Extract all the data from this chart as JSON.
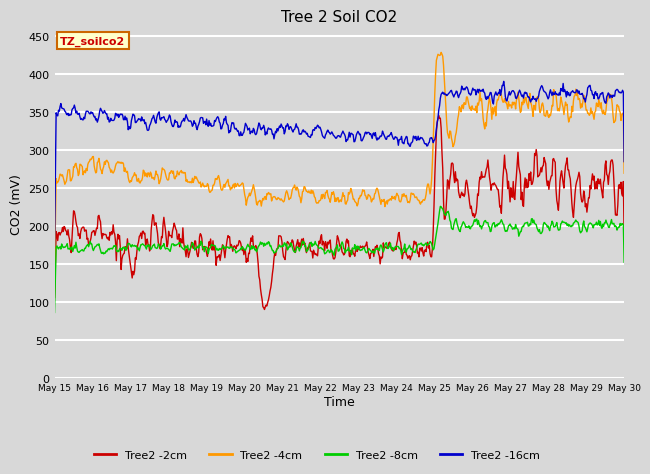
{
  "title": "Tree 2 Soil CO2",
  "xlabel": "Time",
  "ylabel": "CO2 (mV)",
  "ylim": [
    0,
    460
  ],
  "yticks": [
    0,
    50,
    100,
    150,
    200,
    250,
    300,
    350,
    400,
    450
  ],
  "annotation_text": "TZ_soilco2",
  "annotation_bg": "#ffffcc",
  "annotation_edge": "#cc6600",
  "background_color": "#d8d8d8",
  "plot_bg": "#d8d8d8",
  "grid_color": "#ffffff",
  "colors": {
    "2cm": "#cc0000",
    "4cm": "#ff9900",
    "8cm": "#00cc00",
    "16cm": "#0000cc"
  },
  "legend_labels": [
    "Tree2 -2cm",
    "Tree2 -4cm",
    "Tree2 -8cm",
    "Tree2 -16cm"
  ],
  "tick_labels": [
    "May 15",
    "May 16",
    "May 17",
    "May 18",
    "May 19",
    "May 20",
    "May 21",
    "May 22",
    "May 23",
    "May 24",
    "May 25",
    "May 26",
    "May 27",
    "May 28",
    "May 29",
    "May 30"
  ]
}
